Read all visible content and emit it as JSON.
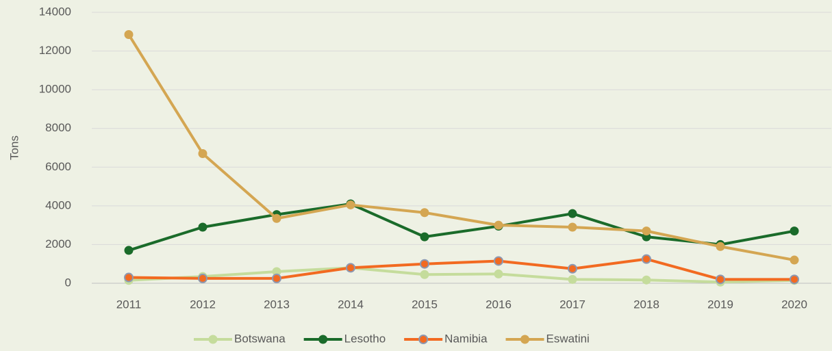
{
  "chart_data": {
    "type": "line",
    "y_label": "Tons",
    "categories": [
      "2011",
      "2012",
      "2013",
      "2014",
      "2015",
      "2016",
      "2017",
      "2018",
      "2019",
      "2020"
    ],
    "series": [
      {
        "name": "Botswana",
        "color": "#c5dc9c",
        "values": [
          150,
          350,
          600,
          800,
          450,
          480,
          200,
          170,
          60,
          150
        ]
      },
      {
        "name": "Lesotho",
        "color": "#1a6b2a",
        "values": [
          1700,
          2900,
          3550,
          4100,
          2400,
          2950,
          3600,
          2400,
          2000,
          2700
        ]
      },
      {
        "name": "Namibia",
        "color": "#f26a21",
        "marker_edge": "#8d98b0",
        "values": [
          300,
          250,
          250,
          800,
          1000,
          1150,
          750,
          1250,
          200,
          200
        ]
      },
      {
        "name": "Eswatini",
        "color": "#d4a652",
        "values": [
          12850,
          6700,
          3350,
          4050,
          3650,
          3000,
          2900,
          2700,
          1900,
          1200
        ]
      }
    ],
    "ylim": [
      0,
      14000
    ],
    "yticks": [
      0,
      2000,
      4000,
      6000,
      8000,
      10000,
      12000,
      14000
    ],
    "grid": true,
    "legend": "bottom"
  }
}
